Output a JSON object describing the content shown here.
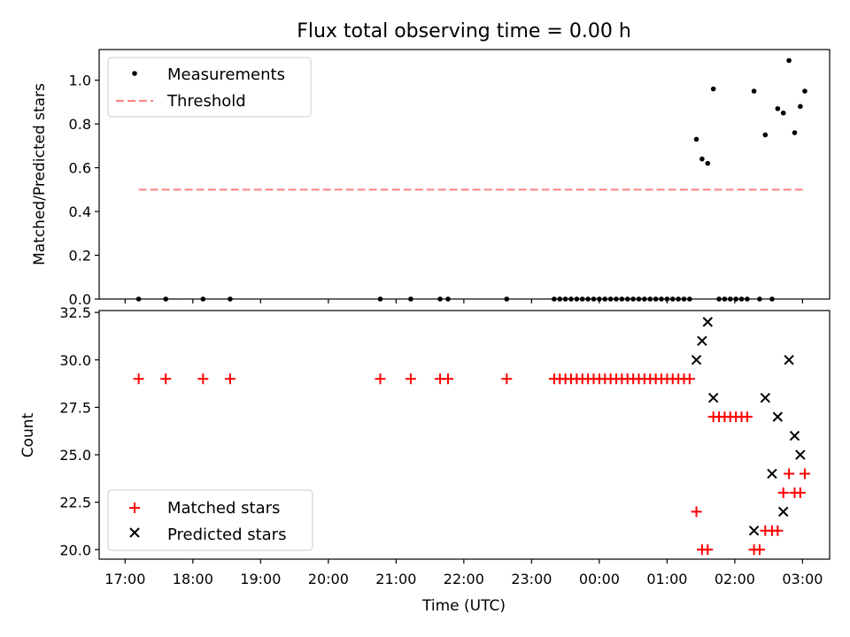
{
  "figure": {
    "title": "Flux total observing time = 0.00 h",
    "xlabel": "Time (UTC)",
    "xticks": [
      "17:00",
      "18:00",
      "19:00",
      "20:00",
      "21:00",
      "22:00",
      "23:00",
      "00:00",
      "01:00",
      "02:00",
      "03:00"
    ]
  },
  "colors": {
    "measurement": "#000000",
    "threshold": "#ff8080",
    "matched": "#ff0000",
    "predicted": "#000000",
    "axes": "#000000"
  },
  "chart_data": [
    {
      "type": "scatter",
      "ylabel": "Matched/Predicted stars",
      "ylim": [
        0,
        1.14
      ],
      "yticks": [
        "0.0",
        "0.2",
        "0.4",
        "0.6",
        "0.8",
        "1.0"
      ],
      "legend": {
        "placement": "top-left",
        "measurements": "Measurements",
        "threshold": "Threshold"
      },
      "threshold": {
        "value": 0.5,
        "x_start": "17:12",
        "x_end": "03:02"
      },
      "series": [
        {
          "name": "Measurements",
          "x": [
            "17:12",
            "17:36",
            "18:09",
            "18:33",
            "20:46",
            "21:13",
            "21:39",
            "21:46",
            "22:38",
            "23:20",
            "23:25",
            "23:30",
            "23:35",
            "23:40",
            "23:45",
            "23:50",
            "23:55",
            "00:00",
            "00:05",
            "00:10",
            "00:15",
            "00:20",
            "00:25",
            "00:30",
            "00:35",
            "00:40",
            "00:45",
            "00:50",
            "00:55",
            "01:00",
            "01:05",
            "01:10",
            "01:15",
            "01:20",
            "01:26",
            "01:31",
            "01:36",
            "01:41",
            "01:46",
            "01:51",
            "01:56",
            "02:01",
            "02:06",
            "02:11",
            "02:17",
            "02:22",
            "02:27",
            "02:33",
            "02:38",
            "02:43",
            "02:48",
            "02:53",
            "02:58",
            "03:02"
          ],
          "y": [
            0,
            0,
            0,
            0,
            0,
            0,
            0,
            0,
            0,
            0,
            0,
            0,
            0,
            0,
            0,
            0,
            0,
            0,
            0,
            0,
            0,
            0,
            0,
            0,
            0,
            0,
            0,
            0,
            0,
            0,
            0,
            0,
            0,
            0,
            0.73,
            0.64,
            0.62,
            0.96,
            0,
            0,
            0,
            0,
            0,
            0,
            0.95,
            0,
            0.75,
            0,
            0.87,
            0.85,
            1.09,
            0.76,
            0.88,
            0.95
          ]
        }
      ]
    },
    {
      "type": "scatter",
      "ylabel": "Count",
      "ylim": [
        19.5,
        32.6
      ],
      "yticks": [
        "20.0",
        "22.5",
        "25.0",
        "27.5",
        "30.0",
        "32.5"
      ],
      "legend": {
        "placement": "bottom-left",
        "matched": "Matched stars",
        "predicted": "Predicted stars"
      },
      "series": [
        {
          "name": "Matched stars",
          "x": [
            "17:12",
            "17:36",
            "18:09",
            "18:33",
            "20:46",
            "21:13",
            "21:39",
            "21:46",
            "22:38",
            "23:20",
            "23:25",
            "23:30",
            "23:35",
            "23:40",
            "23:45",
            "23:50",
            "23:55",
            "00:00",
            "00:05",
            "00:10",
            "00:15",
            "00:20",
            "00:25",
            "00:30",
            "00:35",
            "00:40",
            "00:45",
            "00:50",
            "00:55",
            "01:00",
            "01:05",
            "01:10",
            "01:15",
            "01:20",
            "01:26",
            "01:31",
            "01:36",
            "01:41",
            "01:46",
            "01:51",
            "01:56",
            "02:01",
            "02:06",
            "02:11",
            "02:17",
            "02:22",
            "02:27",
            "02:33",
            "02:38",
            "02:43",
            "02:48",
            "02:53",
            "02:58",
            "03:02"
          ],
          "y": [
            29,
            29,
            29,
            29,
            29,
            29,
            29,
            29,
            29,
            29,
            29,
            29,
            29,
            29,
            29,
            29,
            29,
            29,
            29,
            29,
            29,
            29,
            29,
            29,
            29,
            29,
            29,
            29,
            29,
            29,
            29,
            29,
            29,
            29,
            22,
            20,
            20,
            27,
            27,
            27,
            27,
            27,
            27,
            27,
            20,
            20,
            21,
            21,
            21,
            23,
            24,
            23,
            23,
            24
          ]
        },
        {
          "name": "Predicted stars",
          "x": [
            "01:26",
            "01:31",
            "01:36",
            "01:41",
            "02:17",
            "02:27",
            "02:33",
            "02:38",
            "02:43",
            "02:48",
            "02:53",
            "02:58"
          ],
          "y": [
            30,
            31,
            32,
            28,
            21,
            28,
            24,
            27,
            22,
            30,
            26,
            25
          ]
        }
      ]
    }
  ]
}
